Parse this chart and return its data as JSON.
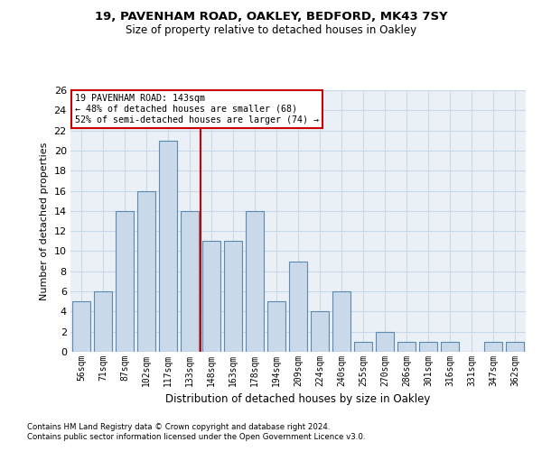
{
  "title1": "19, PAVENHAM ROAD, OAKLEY, BEDFORD, MK43 7SY",
  "title2": "Size of property relative to detached houses in Oakley",
  "xlabel": "Distribution of detached houses by size in Oakley",
  "ylabel": "Number of detached properties",
  "categories": [
    "56sqm",
    "71sqm",
    "87sqm",
    "102sqm",
    "117sqm",
    "133sqm",
    "148sqm",
    "163sqm",
    "178sqm",
    "194sqm",
    "209sqm",
    "224sqm",
    "240sqm",
    "255sqm",
    "270sqm",
    "286sqm",
    "301sqm",
    "316sqm",
    "331sqm",
    "347sqm",
    "362sqm"
  ],
  "values": [
    5,
    6,
    14,
    16,
    21,
    14,
    11,
    11,
    14,
    5,
    9,
    4,
    6,
    1,
    2,
    1,
    1,
    1,
    0,
    1,
    1
  ],
  "bar_color": "#c9d9ea",
  "bar_edge_color": "#5a8ab0",
  "vline_x": 5.5,
  "vline_color": "#cc0000",
  "annotation_text": "19 PAVENHAM ROAD: 143sqm\n← 48% of detached houses are smaller (68)\n52% of semi-detached houses are larger (74) →",
  "annotation_box_color": "#ffffff",
  "annotation_box_edge": "#cc0000",
  "ylim": [
    0,
    26
  ],
  "yticks": [
    0,
    2,
    4,
    6,
    8,
    10,
    12,
    14,
    16,
    18,
    20,
    22,
    24,
    26
  ],
  "grid_color": "#c8d8e8",
  "bg_color": "#eaf0f6",
  "footer1": "Contains HM Land Registry data © Crown copyright and database right 2024.",
  "footer2": "Contains public sector information licensed under the Open Government Licence v3.0."
}
